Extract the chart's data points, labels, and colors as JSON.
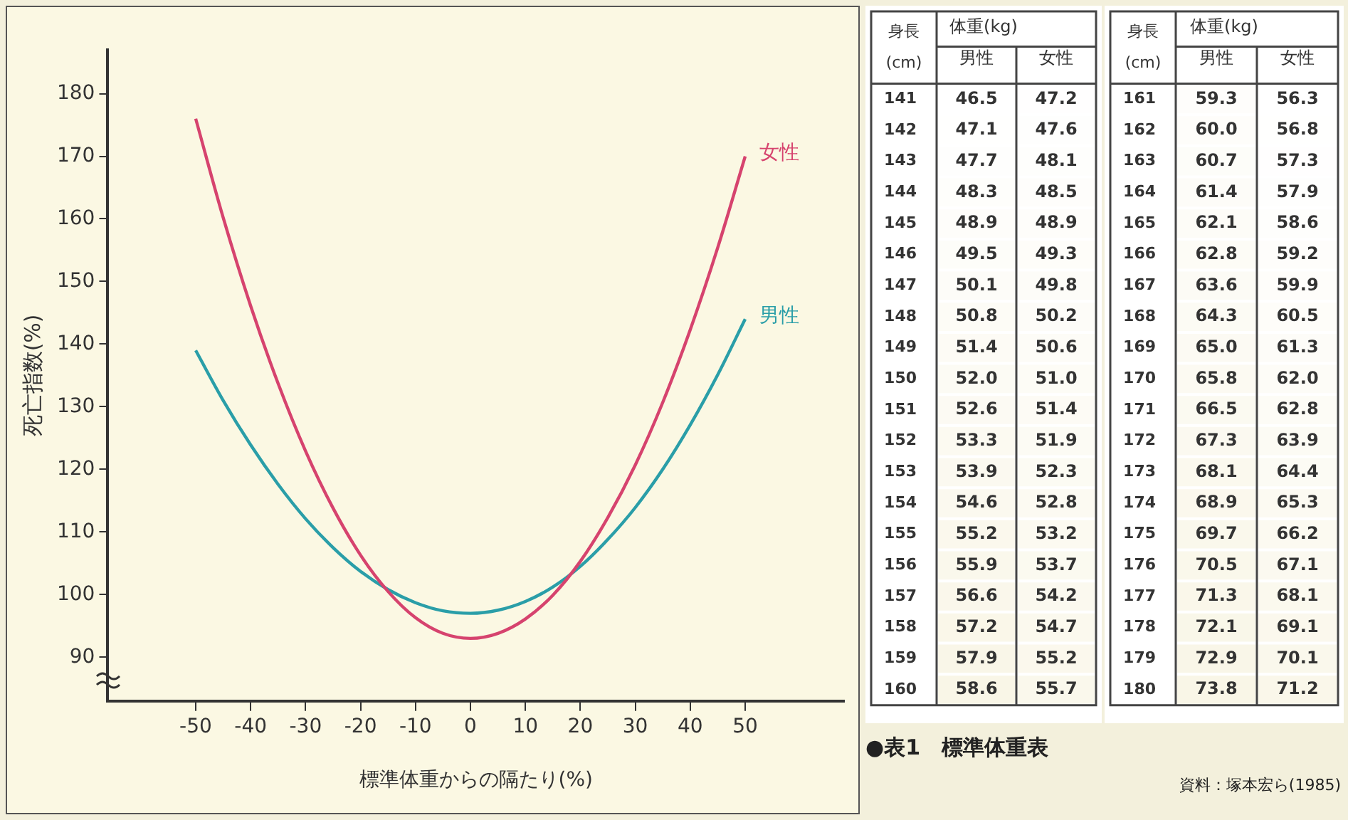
{
  "chart_data": [
    {
      "type": "line",
      "xlabel": "標準体重からの隔たり(%)",
      "ylabel": "死亡指数(%)",
      "xlim": [
        -66,
        68
      ],
      "ylim": [
        83,
        187
      ],
      "xticks": [
        -50,
        -40,
        -30,
        -20,
        -10,
        0,
        10,
        20,
        30,
        40,
        50
      ],
      "yticks": [
        90,
        100,
        110,
        120,
        130,
        140,
        150,
        160,
        170,
        180
      ],
      "grid": false,
      "x": [
        -50,
        -45,
        -40,
        -35,
        -30,
        -25,
        -20,
        -15,
        -10,
        -5,
        0,
        5,
        10,
        15,
        20,
        25,
        30,
        35,
        40,
        45,
        50
      ],
      "series": [
        {
          "name": "女性",
          "color": "#d6436e",
          "values": [
            176,
            160.2,
            146.1,
            133.7,
            122.9,
            113.8,
            106.3,
            100.5,
            96.3,
            93.8,
            93,
            93.8,
            96.1,
            99.9,
            105.3,
            112.3,
            120.7,
            130.7,
            142.3,
            155.4,
            170
          ]
        },
        {
          "name": "男性",
          "color": "#2a9ea8",
          "values": [
            139,
            131,
            123.9,
            117.6,
            112.1,
            107.5,
            103.7,
            100.8,
            98.7,
            97.4,
            97,
            97.5,
            98.9,
            101.2,
            104.5,
            108.8,
            113.9,
            120,
            127.1,
            135.1,
            144
          ]
        }
      ]
    },
    {
      "type": "heatmap",
      "title": "体重(kg)",
      "ylabel": "身長(cm)",
      "categories": [
        "男性",
        "女性"
      ],
      "data_labels": true,
      "y_categories": [
        "141",
        "142",
        "143",
        "144",
        "145",
        "146",
        "147",
        "148",
        "149",
        "150",
        "151",
        "152",
        "153",
        "154",
        "155",
        "156",
        "157",
        "158",
        "159",
        "160"
      ],
      "cells": [
        [
          46.5,
          47.2
        ],
        [
          47.1,
          47.6
        ],
        [
          47.7,
          48.1
        ],
        [
          48.3,
          48.5
        ],
        [
          48.9,
          48.9
        ],
        [
          49.5,
          49.3
        ],
        [
          50.1,
          49.8
        ],
        [
          50.8,
          50.2
        ],
        [
          51.4,
          50.6
        ],
        [
          52.0,
          51.0
        ],
        [
          52.6,
          51.4
        ],
        [
          53.3,
          51.9
        ],
        [
          53.9,
          52.3
        ],
        [
          54.6,
          52.8
        ],
        [
          55.2,
          53.2
        ],
        [
          55.9,
          53.7
        ],
        [
          56.6,
          54.2
        ],
        [
          57.2,
          54.7
        ],
        [
          57.9,
          55.2
        ],
        [
          58.6,
          55.7
        ]
      ],
      "cell_labels": [
        [
          "46.5",
          "47.2"
        ],
        [
          "47.1",
          "47.6"
        ],
        [
          "47.7",
          "48.1"
        ],
        [
          "48.3",
          "48.5"
        ],
        [
          "48.9",
          "48.9"
        ],
        [
          "49.5",
          "49.3"
        ],
        [
          "50.1",
          "49.8"
        ],
        [
          "50.8",
          "50.2"
        ],
        [
          "51.4",
          "50.6"
        ],
        [
          "52.0",
          "51.0"
        ],
        [
          "52.6",
          "51.4"
        ],
        [
          "53.3",
          "51.9"
        ],
        [
          "53.9",
          "52.3"
        ],
        [
          "54.6",
          "52.8"
        ],
        [
          "55.2",
          "53.2"
        ],
        [
          "55.9",
          "53.7"
        ],
        [
          "56.6",
          "54.2"
        ],
        [
          "57.2",
          "54.7"
        ],
        [
          "57.9",
          "55.2"
        ],
        [
          "58.6",
          "55.7"
        ]
      ],
      "annotations": [
        "●表1　標準体重表",
        "資料：塚本宏ら(1985)"
      ]
    },
    {
      "type": "heatmap",
      "title": "体重(kg)",
      "ylabel": "身長(cm)",
      "categories": [
        "男性",
        "女性"
      ],
      "data_labels": true,
      "y_categories": [
        "161",
        "162",
        "163",
        "164",
        "165",
        "166",
        "167",
        "168",
        "169",
        "170",
        "171",
        "172",
        "173",
        "174",
        "175",
        "176",
        "177",
        "178",
        "179",
        "180"
      ],
      "cells": [
        [
          59.3,
          56.3
        ],
        [
          60.0,
          56.8
        ],
        [
          60.7,
          57.3
        ],
        [
          61.4,
          57.9
        ],
        [
          62.1,
          58.6
        ],
        [
          62.8,
          59.2
        ],
        [
          63.6,
          59.9
        ],
        [
          64.3,
          60.5
        ],
        [
          65.0,
          61.3
        ],
        [
          65.8,
          62.0
        ],
        [
          66.5,
          62.8
        ],
        [
          67.3,
          63.9
        ],
        [
          68.1,
          64.4
        ],
        [
          68.9,
          65.3
        ],
        [
          69.7,
          66.2
        ],
        [
          70.5,
          67.1
        ],
        [
          71.3,
          68.1
        ],
        [
          72.1,
          69.1
        ],
        [
          72.9,
          70.1
        ],
        [
          73.8,
          71.2
        ]
      ],
      "cell_labels": [
        [
          "59.3",
          "56.3"
        ],
        [
          "60.0",
          "56.8"
        ],
        [
          "60.7",
          "57.3"
        ],
        [
          "61.4",
          "57.9"
        ],
        [
          "62.1",
          "58.6"
        ],
        [
          "62.8",
          "59.2"
        ],
        [
          "63.6",
          "59.9"
        ],
        [
          "64.3",
          "60.5"
        ],
        [
          "65.0",
          "61.3"
        ],
        [
          "65.8",
          "62.0"
        ],
        [
          "66.5",
          "62.8"
        ],
        [
          "67.3",
          "63.9"
        ],
        [
          "68.1",
          "64.4"
        ],
        [
          "68.9",
          "65.3"
        ],
        [
          "69.7",
          "66.2"
        ],
        [
          "70.5",
          "67.1"
        ],
        [
          "71.3",
          "68.1"
        ],
        [
          "72.1",
          "69.1"
        ],
        [
          "72.9",
          "70.1"
        ],
        [
          "73.8",
          "71.2"
        ]
      ]
    }
  ]
}
